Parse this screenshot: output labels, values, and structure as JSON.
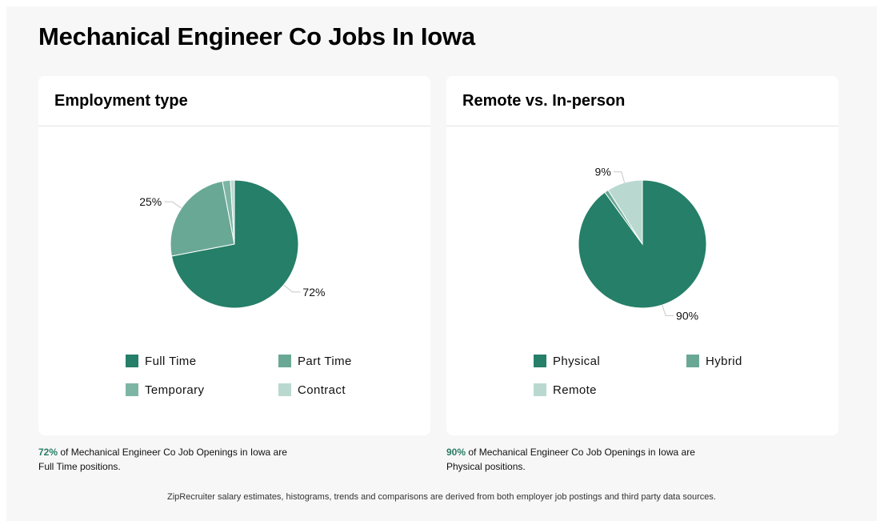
{
  "page": {
    "title": "Mechanical Engineer Co Jobs In Iowa",
    "footer": "ZipRecruiter salary estimates, histograms, trends and comparisons are derived from both employer job postings and third party data sources."
  },
  "cards": [
    {
      "title": "Employment type",
      "legend": [
        "Full Time",
        "Part Time",
        "Temporary",
        "Contract"
      ],
      "caption": {
        "percent": "72%",
        "text_line1": " of Mechanical Engineer Co Job Openings in Iowa are",
        "text_line2": "Full Time positions."
      }
    },
    {
      "title": "Remote vs. In-person",
      "legend": [
        "Physical",
        "Hybrid",
        "Remote"
      ],
      "caption": {
        "percent": "90%",
        "text_line1": " of Mechanical Engineer Co Job Openings in Iowa are",
        "text_line2": "Physical positions."
      }
    }
  ],
  "chart_data": [
    {
      "type": "pie",
      "title": "Employment type",
      "categories": [
        "Full Time",
        "Part Time",
        "Temporary",
        "Contract"
      ],
      "values": [
        72,
        25,
        2,
        1
      ],
      "data_labels": [
        "72%",
        "25%",
        "",
        ""
      ],
      "colors": [
        "#267f68",
        "#6aa896",
        "#7db5a5",
        "#b9d9d0"
      ],
      "legend": "bottom"
    },
    {
      "type": "pie",
      "title": "Remote vs. In-person",
      "categories": [
        "Physical",
        "Hybrid",
        "Remote"
      ],
      "values": [
        90,
        1,
        9
      ],
      "data_labels": [
        "90%",
        "",
        "9%"
      ],
      "colors": [
        "#267f68",
        "#6aa896",
        "#b9d9d0"
      ],
      "legend": "bottom"
    }
  ]
}
